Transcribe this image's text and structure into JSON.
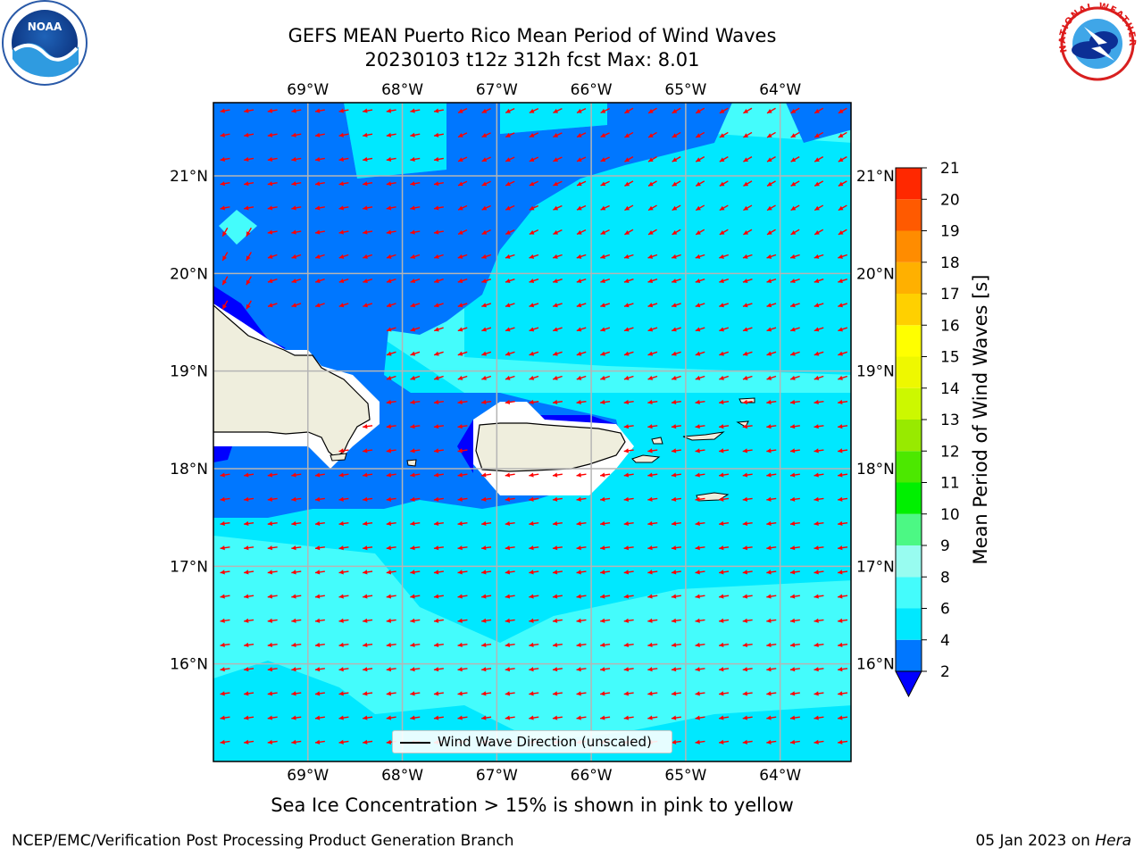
{
  "title": {
    "line1": "GEFS MEAN Puerto Rico Mean Period of Wind Waves",
    "line2": "20230103 t12z 312h fcst   Max: 8.01"
  },
  "map": {
    "lon_range": [
      -70,
      -63.25
    ],
    "lat_range": [
      15.0,
      21.75
    ],
    "lon_ticks": [
      "69°W",
      "68°W",
      "67°W",
      "66°W",
      "65°W",
      "64°W"
    ],
    "lat_ticks": [
      "21°N",
      "20°N",
      "19°N",
      "18°N",
      "17°N",
      "16°N"
    ],
    "gridlines": true,
    "arrow_direction": "toward WSW",
    "arrow_color": "#ff0000",
    "land_color": "#efeedd",
    "legend_text": "Wind Wave Direction (unscaled)"
  },
  "colorbar": {
    "label": "Mean Period of Wind Waves [s]",
    "ticks": [
      "2",
      "4",
      "6",
      "8",
      "9",
      "10",
      "11",
      "12",
      "13",
      "14",
      "15",
      "16",
      "17",
      "18",
      "19",
      "20",
      "21"
    ],
    "colors": [
      "#0077ff",
      "#00e8ff",
      "#44fcfc",
      "#98fcf0",
      "#4cf884",
      "#00f000",
      "#4ce800",
      "#98ea00",
      "#ccf800",
      "#eef800",
      "#ffff00",
      "#ffd000",
      "#ffb000",
      "#ff8c00",
      "#ff5a00",
      "#ff2800",
      "#ff0000"
    ],
    "under_color": "#0000ff"
  },
  "note": "Sea Ice Concentration > 15% is shown in pink to yellow",
  "footer": {
    "left": "NCEP/EMC/Verification Post Processing Product Generation Branch",
    "date": "05 Jan 2023 on ",
    "host": "Hera"
  },
  "logos": {
    "noaa": "NOAA",
    "nws": "NATIONAL WEATHER SERVICE"
  }
}
